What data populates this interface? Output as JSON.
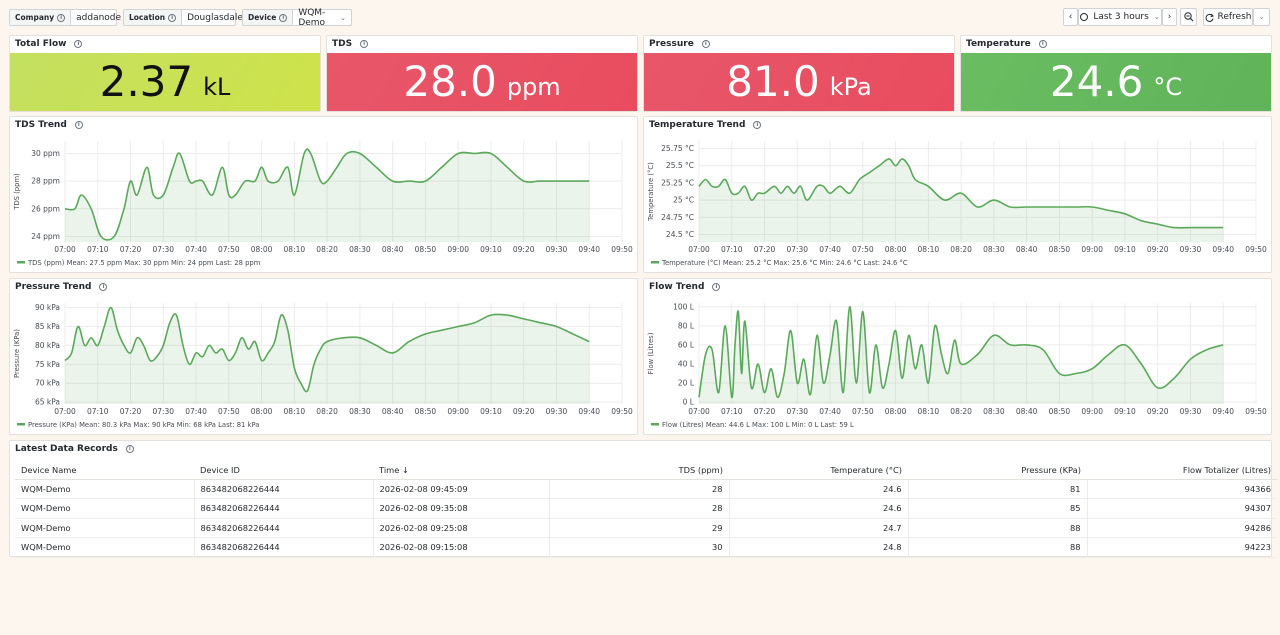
{
  "variables": [
    {
      "label": "Company",
      "value": "addanode"
    },
    {
      "label": "Location",
      "value": "Douglasdale"
    },
    {
      "label": "Device",
      "value": "WQM-Demo"
    }
  ],
  "time_controls": {
    "range": "Last 3 hours",
    "refresh": "Refresh"
  },
  "stats": [
    {
      "title": "Total Flow",
      "value": "2.37",
      "unit": "kL",
      "color": "#cee24a"
    },
    {
      "title": "TDS",
      "value": "28.0",
      "unit": "ppm",
      "color": "#e94c5e"
    },
    {
      "title": "Pressure",
      "value": "81.0",
      "unit": "kPa",
      "color": "#e94c5e"
    },
    {
      "title": "Temperature",
      "value": "24.6",
      "unit": "°C",
      "color": "#61b35a"
    }
  ],
  "chart_data": [
    {
      "type": "line",
      "title": "TDS Trend",
      "ylabel": "TDS (ppm)",
      "ylim": [
        23.6,
        30.9
      ],
      "yticks": [
        24,
        26,
        28,
        30
      ],
      "ytick_labels": [
        "24 ppm",
        "26 ppm",
        "28 ppm",
        "30 ppm"
      ],
      "xticks": [
        "07:00",
        "07:10",
        "07:20",
        "07:30",
        "07:40",
        "07:50",
        "08:00",
        "08:10",
        "08:20",
        "08:30",
        "08:40",
        "08:50",
        "09:00",
        "09:10",
        "09:20",
        "09:30",
        "09:40",
        "09:50"
      ],
      "x": [
        0,
        3,
        5,
        8,
        11,
        15,
        18,
        20,
        22,
        25,
        27,
        30,
        33,
        35,
        38,
        40,
        42,
        45,
        48,
        50,
        52,
        55,
        58,
        60,
        62,
        65,
        68,
        70,
        73,
        75,
        78,
        80,
        83,
        86,
        90,
        95,
        100,
        105,
        110,
        115,
        120,
        125,
        130,
        135,
        140,
        145,
        150,
        155,
        160
      ],
      "series": [
        {
          "name": "TDS (ppm)",
          "values": [
            26,
            26,
            27,
            26,
            24,
            24,
            26,
            28,
            27,
            29,
            27,
            27,
            29,
            30,
            28,
            28,
            28,
            27,
            29,
            27,
            27,
            28,
            28,
            29,
            28,
            28,
            29,
            27,
            30,
            30,
            28,
            28,
            29,
            30,
            30,
            29,
            28,
            28,
            28,
            29,
            30,
            30,
            30,
            29,
            28,
            28,
            28,
            28,
            28
          ]
        }
      ],
      "legend": "TDS (ppm)",
      "legend_stats": "Mean: 27.5 ppm   Max: 30 ppm   Min: 24 ppm   Last: 28 ppm",
      "color": "#5aa85a"
    },
    {
      "type": "line",
      "title": "Temperature Trend",
      "ylabel": "Temperature (°C)",
      "ylim": [
        24.39,
        25.86
      ],
      "yticks": [
        24.5,
        24.75,
        25,
        25.25,
        25.5,
        25.75
      ],
      "ytick_labels": [
        "24.5 °C",
        "24.75 °C",
        "25 °C",
        "25.25 °C",
        "25.5 °C",
        "25.75 °C"
      ],
      "xticks": [
        "07:00",
        "07:10",
        "07:20",
        "07:30",
        "07:40",
        "07:50",
        "08:00",
        "08:10",
        "08:20",
        "08:30",
        "08:40",
        "08:50",
        "09:00",
        "09:10",
        "09:20",
        "09:30",
        "09:40",
        "09:50"
      ],
      "x": [
        0,
        2,
        4,
        6,
        8,
        10,
        12,
        14,
        16,
        18,
        20,
        23,
        25,
        27,
        29,
        31,
        33,
        36,
        38,
        40,
        43,
        46,
        49,
        52,
        55,
        58,
        60,
        62,
        64,
        66,
        70,
        75,
        80,
        85,
        90,
        95,
        100,
        105,
        110,
        115,
        120,
        125,
        130,
        135,
        140,
        145,
        150,
        155,
        160
      ],
      "series": [
        {
          "name": "Temperature (°C)",
          "values": [
            25.2,
            25.3,
            25.2,
            25.2,
            25.3,
            25.1,
            25.1,
            25.2,
            25.0,
            25.1,
            25.1,
            25.2,
            25.1,
            25.2,
            25.1,
            25.2,
            25.0,
            25.2,
            25.2,
            25.1,
            25.2,
            25.1,
            25.3,
            25.4,
            25.5,
            25.6,
            25.5,
            25.6,
            25.5,
            25.3,
            25.2,
            25.0,
            25.1,
            24.9,
            25.0,
            24.9,
            24.9,
            24.9,
            24.9,
            24.9,
            24.9,
            24.85,
            24.8,
            24.7,
            24.65,
            24.6,
            24.6,
            24.6,
            24.6
          ]
        }
      ],
      "legend": "Temperature (°C)",
      "legend_stats": "Mean: 25.2 °C   Max: 25.6 °C   Min: 24.6 °C   Last: 24.6 °C",
      "color": "#5aa85a"
    },
    {
      "type": "line",
      "title": "Pressure Trend",
      "ylabel": "Pressure (KPa)",
      "ylim": [
        64.5,
        91.2
      ],
      "yticks": [
        65,
        70,
        75,
        80,
        85,
        90
      ],
      "ytick_labels": [
        "65 kPa",
        "70 kPa",
        "75 kPa",
        "80 kPa",
        "85 kPa",
        "90 kPa"
      ],
      "xticks": [
        "07:00",
        "07:10",
        "07:20",
        "07:30",
        "07:40",
        "07:50",
        "08:00",
        "08:10",
        "08:20",
        "08:30",
        "08:40",
        "08:50",
        "09:00",
        "09:10",
        "09:20",
        "09:30",
        "09:40",
        "09:50"
      ],
      "x": [
        0,
        2,
        4,
        6,
        8,
        10,
        12,
        14,
        16,
        18,
        20,
        22,
        24,
        26,
        28,
        30,
        32,
        34,
        36,
        38,
        40,
        42,
        44,
        46,
        48,
        50,
        52,
        54,
        56,
        58,
        60,
        62,
        64,
        66,
        68,
        70,
        72,
        74,
        76,
        78,
        80,
        85,
        90,
        95,
        100,
        105,
        110,
        115,
        120,
        125,
        130,
        135,
        140,
        145,
        150,
        155,
        160
      ],
      "series": [
        {
          "name": "Pressure (KPa)",
          "values": [
            76,
            78,
            85,
            80,
            82,
            80,
            85,
            90,
            84,
            80,
            78,
            82,
            80,
            76,
            77,
            80,
            86,
            88,
            80,
            75,
            78,
            77,
            80,
            78,
            79,
            76,
            78,
            82,
            79,
            81,
            76,
            78,
            81,
            88,
            84,
            74,
            70,
            68,
            75,
            79,
            81,
            82,
            82,
            80,
            78,
            81,
            83,
            84,
            85,
            86,
            88,
            88,
            87,
            86,
            85,
            83,
            81
          ]
        }
      ],
      "legend": "Pressure (KPa)",
      "legend_stats": "Mean: 80.3 kPa   Max: 90 kPa   Min: 68 kPa   Last: 81 kPa",
      "color": "#5aa85a"
    },
    {
      "type": "line",
      "title": "Flow Trend",
      "ylabel": "Flow (Litres)",
      "ylim": [
        -2,
        104
      ],
      "yticks": [
        0,
        20,
        40,
        60,
        80,
        100
      ],
      "ytick_labels": [
        "0 L",
        "20 L",
        "40 L",
        "60 L",
        "80 L",
        "100 L"
      ],
      "xticks": [
        "07:00",
        "07:10",
        "07:20",
        "07:30",
        "07:40",
        "07:50",
        "08:00",
        "08:10",
        "08:20",
        "08:30",
        "08:40",
        "08:50",
        "09:00",
        "09:10",
        "09:20",
        "09:30",
        "09:40",
        "09:50"
      ],
      "x": [
        0,
        2,
        4,
        6,
        8,
        10,
        11,
        12,
        13,
        14,
        16,
        18,
        20,
        22,
        24,
        26,
        28,
        30,
        32,
        34,
        36,
        38,
        40,
        42,
        44,
        46,
        48,
        50,
        52,
        54,
        56,
        58,
        60,
        62,
        64,
        66,
        68,
        70,
        72,
        74,
        76,
        78,
        80,
        85,
        90,
        95,
        100,
        105,
        110,
        115,
        120,
        125,
        130,
        135,
        140,
        145,
        150,
        155,
        160
      ],
      "series": [
        {
          "name": "Flow (Litres)",
          "values": [
            5,
            50,
            55,
            10,
            80,
            5,
            60,
            95,
            30,
            85,
            15,
            40,
            10,
            35,
            5,
            30,
            75,
            20,
            45,
            8,
            70,
            20,
            50,
            85,
            10,
            100,
            20,
            95,
            10,
            60,
            15,
            40,
            75,
            25,
            70,
            35,
            60,
            20,
            80,
            50,
            30,
            65,
            40,
            50,
            70,
            60,
            60,
            55,
            30,
            30,
            35,
            50,
            60,
            40,
            15,
            25,
            45,
            55,
            60
          ]
        }
      ],
      "legend": "Flow (Litres)",
      "legend_stats": "Mean: 44.6 L   Max: 100 L   Min: 0 L   Last: 59 L",
      "color": "#5aa85a"
    }
  ],
  "table": {
    "title": "Latest Data Records",
    "columns": [
      "Device Name",
      "Device ID",
      "Time",
      "TDS (ppm)",
      "Temperature (°C)",
      "Pressure (KPa)",
      "Flow Totalizer (Litres)"
    ],
    "sort_indicator": "↓",
    "rows": [
      [
        "WQM-Demo",
        "863482068226444",
        "2026-02-08 09:45:09",
        "28",
        "24.6",
        "81",
        "94366"
      ],
      [
        "WQM-Demo",
        "863482068226444",
        "2026-02-08 09:35:08",
        "28",
        "24.6",
        "85",
        "94307"
      ],
      [
        "WQM-Demo",
        "863482068226444",
        "2026-02-08 09:25:08",
        "29",
        "24.7",
        "88",
        "94286"
      ],
      [
        "WQM-Demo",
        "863482068226444",
        "2026-02-08 09:15:08",
        "30",
        "24.8",
        "88",
        "94223"
      ]
    ]
  }
}
